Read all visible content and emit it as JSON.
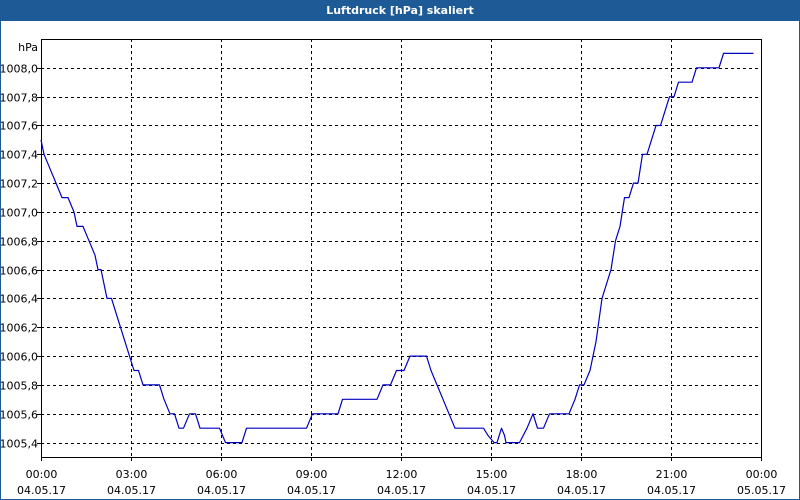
{
  "window": {
    "title": "Luftdruck [hPa] skaliert"
  },
  "colors": {
    "title_bar": "#1e5a96",
    "line": "#0000c0",
    "grid": "#000000",
    "axis": "#000000"
  },
  "chart_data": {
    "type": "line",
    "title": "Luftdruck [hPa] skaliert",
    "ylabel": "hPa",
    "xlabel": "",
    "ylim": [
      1005.3,
      1008.2
    ],
    "grid": true,
    "grid_style": "dashed",
    "y_ticks": [
      1005.4,
      1005.6,
      1005.8,
      1006.0,
      1006.2,
      1006.4,
      1006.6,
      1006.8,
      1007.0,
      1007.2,
      1007.4,
      1007.6,
      1007.8,
      1008.0
    ],
    "y_tick_labels": [
      "1005,4",
      "1005,6",
      "1005,8",
      "1006,0",
      "1006,2",
      "1006,4",
      "1006,6",
      "1006,8",
      "1007,0",
      "1007,2",
      "1007,4",
      "1007,6",
      "1007,8",
      "1008,0"
    ],
    "x_ticks": [
      0,
      3,
      6,
      9,
      12,
      15,
      18,
      21,
      24
    ],
    "x_tick_labels": [
      {
        "time": "00:00",
        "date": "04.05.17"
      },
      {
        "time": "03:00",
        "date": "04.05.17"
      },
      {
        "time": "06:00",
        "date": "04.05.17"
      },
      {
        "time": "09:00",
        "date": "04.05.17"
      },
      {
        "time": "12:00",
        "date": "04.05.17"
      },
      {
        "time": "15:00",
        "date": "04.05.17"
      },
      {
        "time": "18:00",
        "date": "04.05.17"
      },
      {
        "time": "21:00",
        "date": "04.05.17"
      },
      {
        "time": "00:00",
        "date": "05.05.17"
      }
    ],
    "xlim": [
      0,
      24
    ],
    "series": [
      {
        "name": "",
        "points": [
          [
            0.0,
            1007.5
          ],
          [
            0.1,
            1007.4
          ],
          [
            0.3,
            1007.3
          ],
          [
            0.5,
            1007.2
          ],
          [
            0.7,
            1007.1
          ],
          [
            0.9,
            1007.1
          ],
          [
            1.1,
            1007.0
          ],
          [
            1.2,
            1006.9
          ],
          [
            1.4,
            1006.9
          ],
          [
            1.6,
            1006.8
          ],
          [
            1.8,
            1006.7
          ],
          [
            1.9,
            1006.6
          ],
          [
            2.0,
            1006.6
          ],
          [
            2.1,
            1006.5
          ],
          [
            2.2,
            1006.4
          ],
          [
            2.35,
            1006.4
          ],
          [
            2.5,
            1006.3
          ],
          [
            2.65,
            1006.2
          ],
          [
            2.8,
            1006.1
          ],
          [
            2.95,
            1006.0
          ],
          [
            3.1,
            1005.9
          ],
          [
            3.25,
            1005.9
          ],
          [
            3.4,
            1005.8
          ],
          [
            3.6,
            1005.8
          ],
          [
            3.8,
            1005.8
          ],
          [
            3.95,
            1005.8
          ],
          [
            4.1,
            1005.7
          ],
          [
            4.3,
            1005.6
          ],
          [
            4.45,
            1005.6
          ],
          [
            4.6,
            1005.5
          ],
          [
            4.75,
            1005.5
          ],
          [
            4.95,
            1005.6
          ],
          [
            5.15,
            1005.6
          ],
          [
            5.3,
            1005.5
          ],
          [
            5.6,
            1005.5
          ],
          [
            5.95,
            1005.5
          ],
          [
            6.15,
            1005.4
          ],
          [
            6.45,
            1005.4
          ],
          [
            6.7,
            1005.4
          ],
          [
            6.85,
            1005.5
          ],
          [
            7.5,
            1005.5
          ],
          [
            8.2,
            1005.5
          ],
          [
            8.85,
            1005.5
          ],
          [
            9.05,
            1005.6
          ],
          [
            9.55,
            1005.6
          ],
          [
            9.9,
            1005.6
          ],
          [
            10.05,
            1005.7
          ],
          [
            10.6,
            1005.7
          ],
          [
            11.2,
            1005.7
          ],
          [
            11.4,
            1005.8
          ],
          [
            11.65,
            1005.8
          ],
          [
            11.85,
            1005.9
          ],
          [
            12.1,
            1005.9
          ],
          [
            12.3,
            1006.0
          ],
          [
            12.6,
            1006.0
          ],
          [
            12.85,
            1006.0
          ],
          [
            13.0,
            1005.9
          ],
          [
            13.2,
            1005.8
          ],
          [
            13.4,
            1005.7
          ],
          [
            13.6,
            1005.6
          ],
          [
            13.8,
            1005.5
          ],
          [
            14.3,
            1005.5
          ],
          [
            14.75,
            1005.5
          ],
          [
            14.9,
            1005.45
          ],
          [
            15.1,
            1005.4
          ],
          [
            15.2,
            1005.4
          ],
          [
            15.35,
            1005.5
          ],
          [
            15.45,
            1005.45
          ],
          [
            15.5,
            1005.4
          ],
          [
            15.75,
            1005.4
          ],
          [
            15.95,
            1005.4
          ],
          [
            16.2,
            1005.5
          ],
          [
            16.4,
            1005.6
          ],
          [
            16.55,
            1005.5
          ],
          [
            16.75,
            1005.5
          ],
          [
            16.95,
            1005.6
          ],
          [
            17.35,
            1005.6
          ],
          [
            17.6,
            1005.6
          ],
          [
            17.8,
            1005.7
          ],
          [
            17.95,
            1005.8
          ],
          [
            18.1,
            1005.8
          ],
          [
            18.3,
            1005.9
          ],
          [
            18.5,
            1006.1
          ],
          [
            18.7,
            1006.4
          ],
          [
            18.85,
            1006.5
          ],
          [
            19.0,
            1006.6
          ],
          [
            19.15,
            1006.8
          ],
          [
            19.3,
            1006.9
          ],
          [
            19.45,
            1007.1
          ],
          [
            19.6,
            1007.1
          ],
          [
            19.75,
            1007.2
          ],
          [
            19.9,
            1007.2
          ],
          [
            20.05,
            1007.4
          ],
          [
            20.2,
            1007.4
          ],
          [
            20.35,
            1007.5
          ],
          [
            20.5,
            1007.6
          ],
          [
            20.65,
            1007.6
          ],
          [
            20.8,
            1007.7
          ],
          [
            20.95,
            1007.8
          ],
          [
            21.1,
            1007.8
          ],
          [
            21.25,
            1007.9
          ],
          [
            21.7,
            1007.9
          ],
          [
            21.85,
            1008.0
          ],
          [
            22.45,
            1008.0
          ],
          [
            22.6,
            1008.0
          ],
          [
            22.75,
            1008.1
          ],
          [
            23.3,
            1008.1
          ],
          [
            23.75,
            1008.1
          ]
        ]
      }
    ]
  }
}
